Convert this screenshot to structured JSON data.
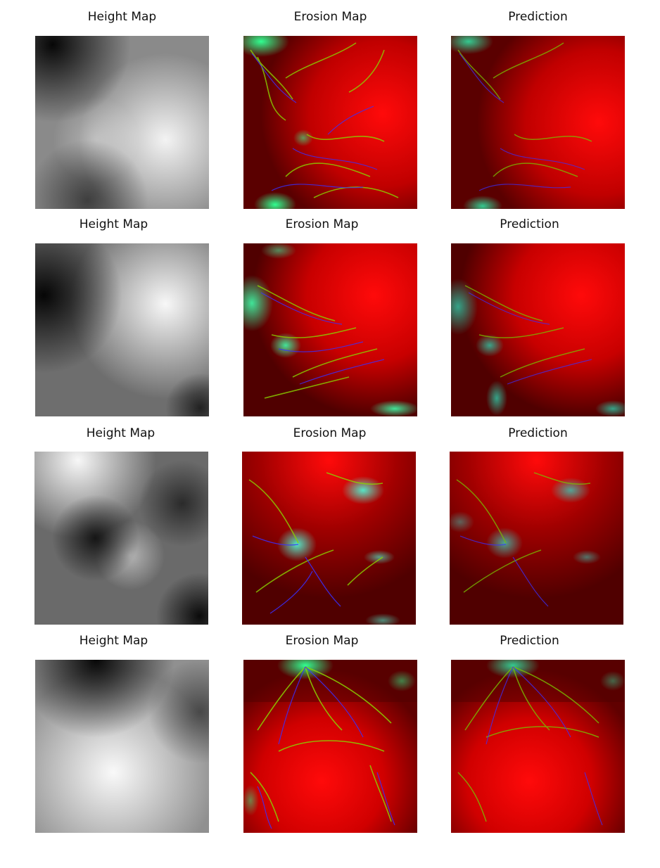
{
  "rows": [
    {
      "titles": [
        "Height Map",
        "Erosion Map",
        "Prediction"
      ]
    },
    {
      "titles": [
        "Height Map",
        "Erosion Map",
        "Prediction"
      ]
    },
    {
      "titles": [
        "Height Map",
        "Erosion Map",
        "Prediction"
      ]
    },
    {
      "titles": [
        "Height Map",
        "Erosion Map",
        "Prediction"
      ]
    }
  ],
  "colors": {
    "erosion_base": "#e00000",
    "erosion_dark": "#4a0000",
    "channel_green": "#7fd000",
    "channel_cyan": "#2fe0b0",
    "channel_blue": "#3a30ff"
  }
}
